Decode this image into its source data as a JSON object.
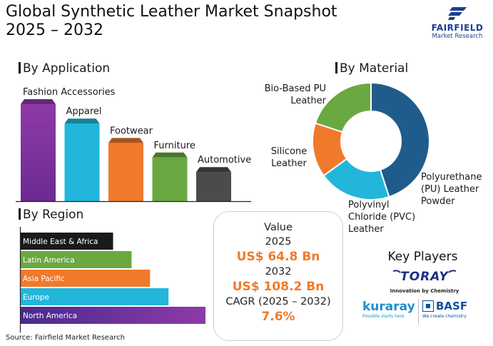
{
  "header": {
    "title_line1": "Global Synthetic Leather Market Snapshot",
    "title_line2": "2025 – 2032"
  },
  "logo": {
    "brand": "FAIRFIELD",
    "sub": "Market Research"
  },
  "sections": {
    "application": "By Application",
    "material": "By Material",
    "region": "By Region"
  },
  "chart_data": [
    {
      "type": "bar",
      "title": "By Application",
      "categories": [
        "Fashion Accessories",
        "Apparel",
        "Footwear",
        "Furniture",
        "Automotive"
      ],
      "values": [
        100,
        80,
        60,
        45,
        30
      ],
      "colors": [
        "#8e3aa8",
        "#22b6db",
        "#ef7a2b",
        "#6aa841",
        "#4b4b4b"
      ]
    },
    {
      "type": "pie",
      "title": "By Material",
      "categories": [
        "Polyurethane (PU) Leather Powder",
        "Polyvinyl Chloride (PVC) Leather",
        "Silicone Leather",
        "Bio-Based PU Leather"
      ],
      "values": [
        45,
        20,
        15,
        20
      ],
      "colors": [
        "#1f5c8b",
        "#22b6db",
        "#ef7a2b",
        "#6aa841"
      ]
    },
    {
      "type": "bar",
      "title": "By Region",
      "orientation": "horizontal",
      "categories": [
        "Middle East & Africa",
        "Latin America",
        "Asia Pacific",
        "Europe",
        "North America"
      ],
      "values": [
        30,
        36,
        42,
        48,
        60
      ],
      "colors": [
        "#1a1a1a",
        "#6aa841",
        "#ef7a2b",
        "#22b6db",
        "#8e3aa8"
      ]
    }
  ],
  "value_box": {
    "heading": "Value",
    "year1": "2025",
    "value1": "US$ 64.8 Bn",
    "year2": "2032",
    "value2": "US$ 108.2 Bn",
    "cagr_label": "CAGR (2025 – 2032)",
    "cagr_value": "7.6%"
  },
  "key_players": {
    "title": "Key Players",
    "toray": "TORAY",
    "toray_tag": "Innovation by Chemistry",
    "kuraray": "kuraray",
    "kuraray_tag": "Possible starts here",
    "basf": "BASF",
    "basf_tag": "We create chemistry",
    "colors": {
      "toray": "#1b2f86",
      "kuraray": "#1d8fd1",
      "basf": "#0b4f9c"
    }
  },
  "source": "Source: Fairfield Market Research"
}
